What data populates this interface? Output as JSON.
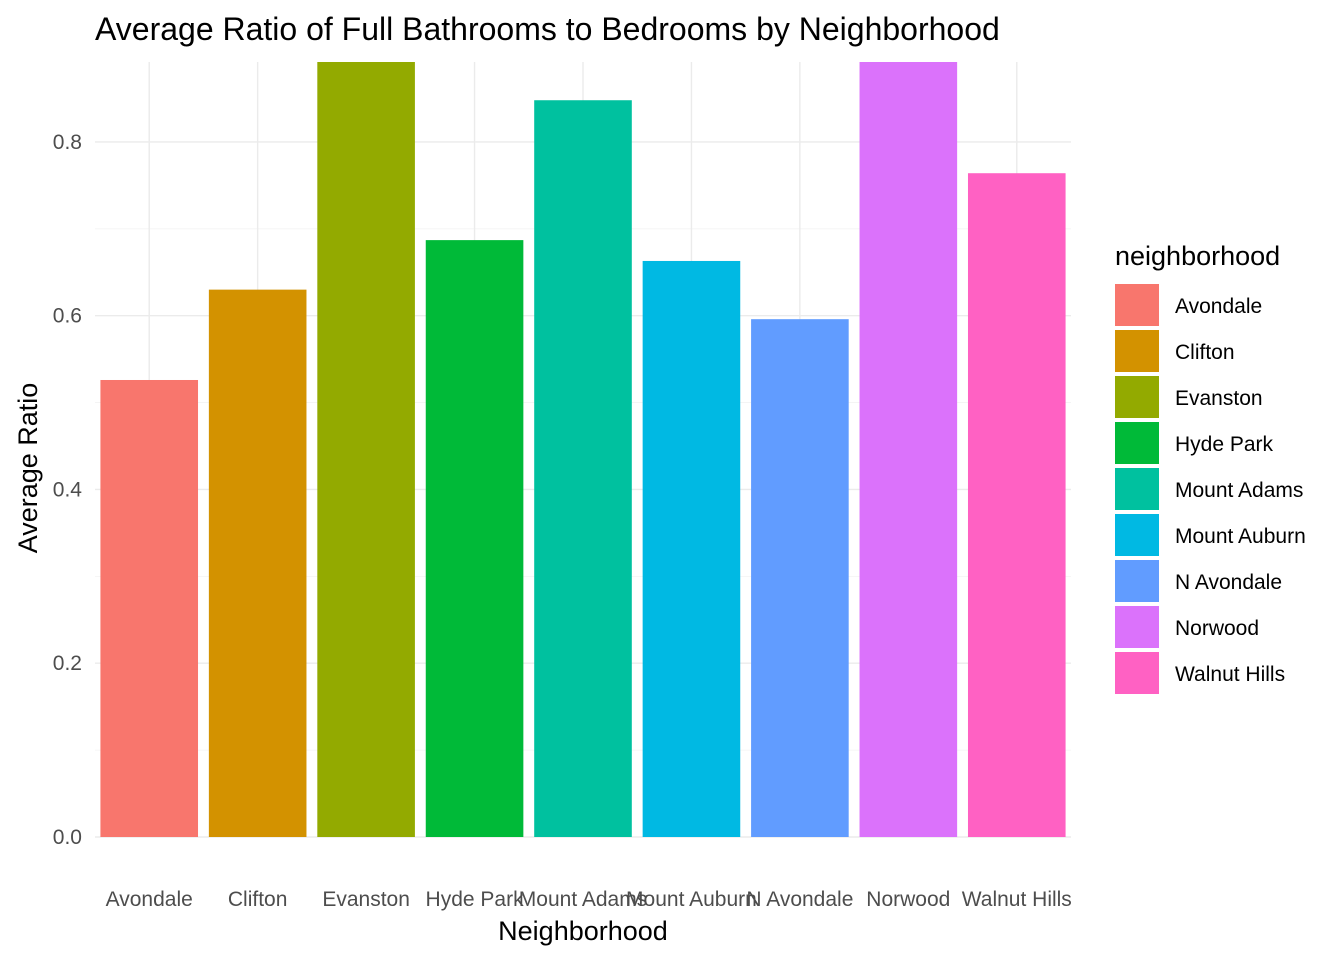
{
  "chart_data": {
    "type": "bar",
    "title": "Average Ratio of Full Bathrooms to Bedrooms by Neighborhood",
    "xlabel": "Neighborhood",
    "ylabel": "Average Ratio",
    "categories": [
      "Avondale",
      "Clifton",
      "Evanston",
      "Hyde Park",
      "Mount Adams",
      "Mount Auburn",
      "N Avondale",
      "Norwood",
      "Walnut Hills"
    ],
    "values": [
      0.526,
      0.63,
      0.892,
      0.687,
      0.848,
      0.663,
      0.596,
      0.892,
      0.764
    ],
    "colors": [
      "#F8766D",
      "#D39200",
      "#93AA00",
      "#00BA38",
      "#00C19F",
      "#00B9E3",
      "#619CFF",
      "#DB72FB",
      "#FF61C3"
    ],
    "ylim": [
      0,
      0.892
    ],
    "yticks": [
      0.0,
      0.2,
      0.4,
      0.6,
      0.8
    ],
    "ytick_labels": [
      "0.0",
      "0.2",
      "0.4",
      "0.6",
      "0.8"
    ],
    "grid": true,
    "legend": {
      "title": "neighborhood",
      "position": "right",
      "items": [
        "Avondale",
        "Clifton",
        "Evanston",
        "Hyde Park",
        "Mount Adams",
        "Mount Auburn",
        "N Avondale",
        "Norwood",
        "Walnut Hills"
      ]
    }
  }
}
